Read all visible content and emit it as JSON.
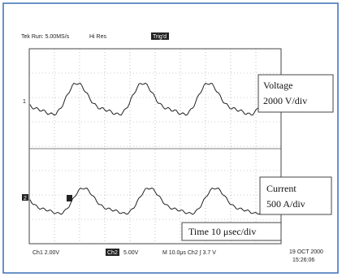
{
  "header": {
    "status": "Tek Run: 5.00MS/s",
    "mode": "Hi Res",
    "trigger": "Trig'd"
  },
  "labels": {
    "voltage": {
      "name": "Voltage",
      "scale": "2000 V/div"
    },
    "current": {
      "name": "Current",
      "scale": "500 A/div"
    },
    "time": "Time 10 μsec/div"
  },
  "markers": {
    "ch1": "1",
    "ch2": "2"
  },
  "footer": {
    "ch1": "Ch1  2.00V",
    "ch2": "Ch2",
    "ch2_scale": "5.00V",
    "timebase": "M 10.0μs  Ch2 ∫  3.7 V",
    "date": "19 OCT 2000",
    "time": "15:26:06"
  }
}
